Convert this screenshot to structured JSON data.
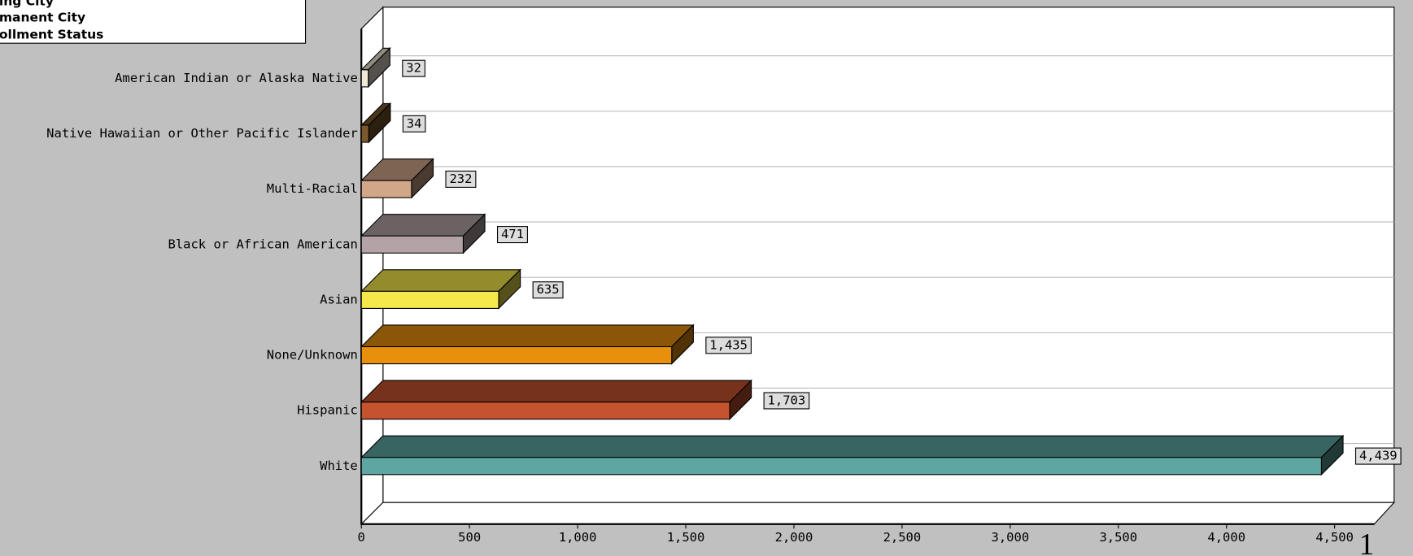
{
  "chart_data": {
    "type": "bar3d-horizontal",
    "legend": [
      "ing City",
      "manent City",
      "ollment Status"
    ],
    "categories": [
      "American Indian or Alaska Native",
      "Native Hawaiian or Other Pacific Islander",
      "Multi-Racial",
      "Black or African American",
      "Asian",
      "None/Unknown",
      "Hispanic",
      "White"
    ],
    "values": [
      32,
      34,
      232,
      471,
      635,
      1435,
      1703,
      4439
    ],
    "value_labels": [
      "32",
      "34",
      "232",
      "471",
      "635",
      "1,435",
      "1,703",
      "4,439"
    ],
    "colors": [
      "#efe8d6",
      "#7a5a2c",
      "#d2a688",
      "#b3a3a6",
      "#f5e84a",
      "#e8900c",
      "#c6532f",
      "#5ea6a1"
    ],
    "xlim": [
      0,
      4500
    ],
    "xticks": [
      0,
      500,
      {
        "value": 1000,
        "label": "1,000"
      },
      {
        "value": 1500,
        "label": "1,500"
      },
      {
        "value": 2000,
        "label": "2,000"
      },
      {
        "value": 2500,
        "label": "2,500"
      },
      {
        "value": 3000,
        "label": "3,000"
      },
      {
        "value": 3500,
        "label": "3,500"
      },
      {
        "value": 4000,
        "label": "4,000"
      },
      {
        "value": 4500,
        "label": "4,500"
      }
    ],
    "annotation": "1"
  }
}
